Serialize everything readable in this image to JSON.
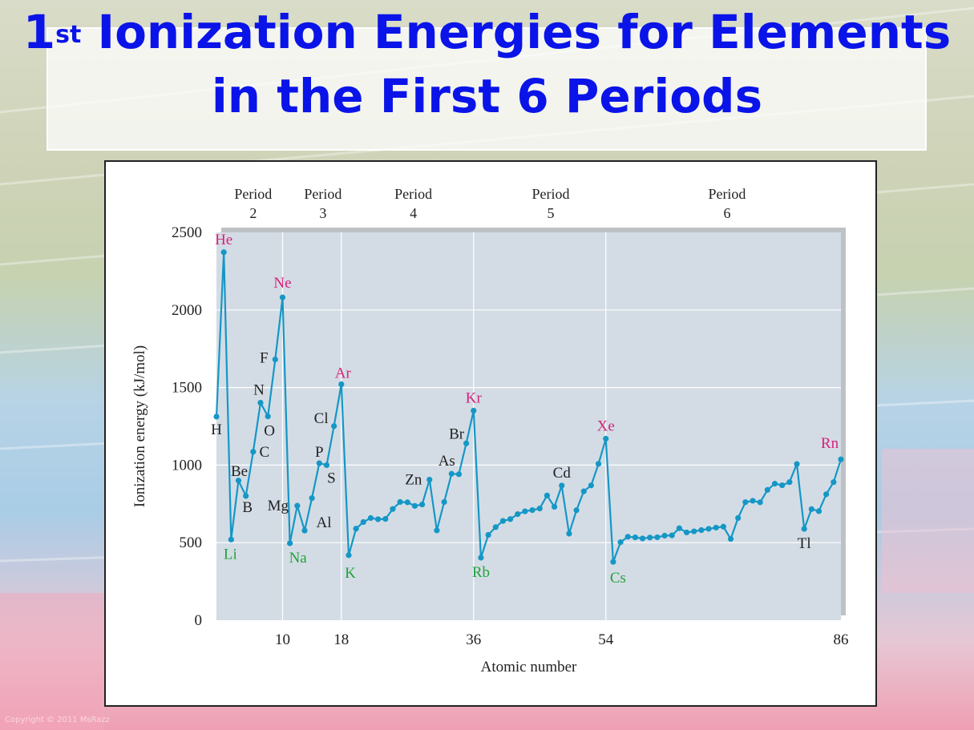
{
  "slide": {
    "title_sup": "st",
    "title_rest": " Ionization Energies for Elements in the First 6 Periods",
    "title_num": "1",
    "footer": "Copyright © 2011  MsRazz"
  },
  "colors": {
    "line": "#1597c6",
    "noble_label": "#d6237a",
    "alkali_label": "#22a23a",
    "other_label": "#222222",
    "plot_bg": "#d3dce5"
  },
  "chart_data": {
    "type": "line",
    "title": "",
    "xlabel": "Atomic number",
    "ylabel": "Ionization energy (kJ/mol)",
    "xlim": [
      1,
      86
    ],
    "ylim": [
      0,
      2500
    ],
    "yticks": [
      0,
      500,
      1000,
      1500,
      2000,
      2500
    ],
    "xticks": [
      10,
      18,
      36,
      54,
      86
    ],
    "grid_x": [
      10,
      18,
      36,
      54
    ],
    "periods": [
      {
        "label": "Period",
        "num": "2",
        "x_center": 6
      },
      {
        "label": "Period",
        "num": "3",
        "x_center": 15.5
      },
      {
        "label": "Period",
        "num": "4",
        "x_center": 27.8
      },
      {
        "label": "Period",
        "num": "5",
        "x_center": 46.5
      },
      {
        "label": "Period",
        "num": "6",
        "x_center": 70.5
      }
    ],
    "x": [
      1,
      2,
      3,
      4,
      5,
      6,
      7,
      8,
      9,
      10,
      11,
      12,
      13,
      14,
      15,
      16,
      17,
      18,
      19,
      20,
      21,
      22,
      23,
      24,
      25,
      26,
      27,
      28,
      29,
      30,
      31,
      32,
      33,
      34,
      35,
      36,
      37,
      38,
      39,
      40,
      41,
      42,
      43,
      44,
      45,
      46,
      47,
      48,
      49,
      50,
      51,
      52,
      53,
      54,
      55,
      56,
      57,
      58,
      59,
      60,
      61,
      62,
      63,
      64,
      65,
      66,
      67,
      68,
      69,
      70,
      71,
      72,
      73,
      74,
      75,
      76,
      77,
      78,
      79,
      80,
      81,
      82,
      83,
      84,
      85,
      86
    ],
    "y": [
      1312,
      2372,
      520,
      900,
      801,
      1086,
      1402,
      1314,
      1681,
      2081,
      496,
      738,
      578,
      787,
      1012,
      1000,
      1251,
      1521,
      419,
      590,
      633,
      659,
      651,
      653,
      717,
      762,
      760,
      737,
      746,
      906,
      579,
      762,
      944,
      941,
      1140,
      1351,
      403,
      550,
      600,
      640,
      652,
      684,
      702,
      710,
      720,
      804,
      731,
      868,
      558,
      709,
      831,
      869,
      1008,
      1170,
      376,
      503,
      538,
      534,
      527,
      533,
      535,
      545,
      547,
      593,
      566,
      573,
      581,
      589,
      597,
      603,
      524,
      659,
      761,
      770,
      760,
      840,
      880,
      870,
      890,
      1007,
      589,
      716,
      703,
      812,
      890,
      1037
    ],
    "point_labels": [
      {
        "text": "H",
        "x": 1,
        "kind": "other",
        "dx": 0,
        "dy": 22
      },
      {
        "text": "He",
        "x": 2,
        "kind": "noble",
        "dx": 0,
        "dy": -10
      },
      {
        "text": "Li",
        "x": 3,
        "kind": "alkali",
        "dx": -1,
        "dy": 24
      },
      {
        "text": "Be",
        "x": 4,
        "kind": "other",
        "dx": 1,
        "dy": -6
      },
      {
        "text": "B",
        "x": 5,
        "kind": "other",
        "dx": 2,
        "dy": 20
      },
      {
        "text": "C",
        "x": 6,
        "kind": "other",
        "dx": 14,
        "dy": 6
      },
      {
        "text": "N",
        "x": 7,
        "kind": "other",
        "dx": -2,
        "dy": -10
      },
      {
        "text": "O",
        "x": 8,
        "kind": "other",
        "dx": 2,
        "dy": 24
      },
      {
        "text": "F",
        "x": 9,
        "kind": "other",
        "dx": -14,
        "dy": 4
      },
      {
        "text": "Ne",
        "x": 10,
        "kind": "noble",
        "dx": 0,
        "dy": -12
      },
      {
        "text": "Na",
        "x": 11,
        "kind": "alkali",
        "dx": 10,
        "dy": 24
      },
      {
        "text": "Mg",
        "x": 12,
        "kind": "other",
        "dx": -24,
        "dy": 6
      },
      {
        "text": "Al",
        "x": 13,
        "kind": "other",
        "dx": 24,
        "dy": -4
      },
      {
        "text": "P",
        "x": 15,
        "kind": "other",
        "dx": 0,
        "dy": -8
      },
      {
        "text": "S",
        "x": 16,
        "kind": "other",
        "dx": 6,
        "dy": 22
      },
      {
        "text": "Cl",
        "x": 17,
        "kind": "other",
        "dx": -16,
        "dy": -4
      },
      {
        "text": "Ar",
        "x": 18,
        "kind": "noble",
        "dx": 2,
        "dy": -8
      },
      {
        "text": "K",
        "x": 19,
        "kind": "alkali",
        "dx": 2,
        "dy": 28
      },
      {
        "text": "Zn",
        "x": 30,
        "kind": "other",
        "dx": -20,
        "dy": 6
      },
      {
        "text": "As",
        "x": 33,
        "kind": "other",
        "dx": -6,
        "dy": -10
      },
      {
        "text": "Br",
        "x": 35,
        "kind": "other",
        "dx": -12,
        "dy": -6
      },
      {
        "text": "Kr",
        "x": 36,
        "kind": "noble",
        "dx": 0,
        "dy": -10
      },
      {
        "text": "Rb",
        "x": 37,
        "kind": "alkali",
        "dx": 0,
        "dy": 24
      },
      {
        "text": "Cd",
        "x": 48,
        "kind": "other",
        "dx": 0,
        "dy": -10
      },
      {
        "text": "Xe",
        "x": 54,
        "kind": "noble",
        "dx": 0,
        "dy": -10
      },
      {
        "text": "Cs",
        "x": 55,
        "kind": "alkali",
        "dx": 6,
        "dy": 26
      },
      {
        "text": "Tl",
        "x": 81,
        "kind": "other",
        "dx": 0,
        "dy": 24
      },
      {
        "text": "Rn",
        "x": 86,
        "kind": "noble",
        "dx": -14,
        "dy": -14
      }
    ]
  }
}
